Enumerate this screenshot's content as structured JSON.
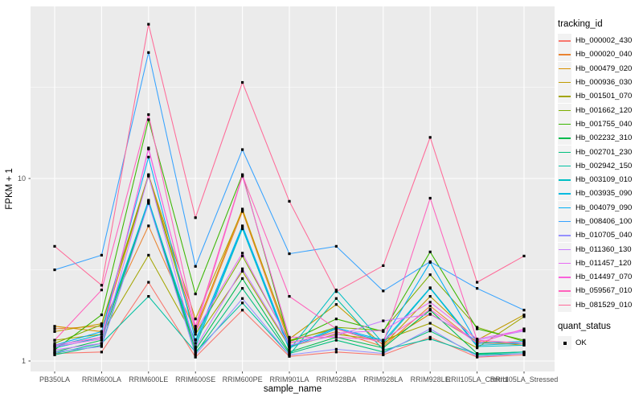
{
  "figure": {
    "xlabel": "sample_name",
    "ylabel": "FPKM + 1",
    "legend_title": "tracking_id",
    "quant_legend_title": "quant_status",
    "quant_legend_label": "OK"
  },
  "chart_data": {
    "type": "line",
    "x_categories": [
      "PB350LA",
      "RRIM600LA",
      "RRIM600LE",
      "RRIM600SE",
      "RRIM600PE",
      "RRIM901LA",
      "RRIM928BA",
      "RRIM928LA",
      "RRIM928LE",
      "RRII105LA_Control",
      "RRII105LA_Stressed"
    ],
    "xlabel": "sample_name",
    "ylabel": "FPKM + 1",
    "yscale": "log10",
    "yticks": [
      1,
      10
    ],
    "ylim": [
      0.88,
      88
    ],
    "grid": true,
    "legend_position": "right",
    "point_marker": "square",
    "point_color": "#000000",
    "panel_bg": "#EBEBEB",
    "grid_color": "#FFFFFF",
    "axis_text_color": "#4d4d4d",
    "legend_key_bg": "#F2F2F2",
    "series": [
      {
        "name": "Hb_000002_430",
        "color": "#F8766D",
        "values": [
          1.1,
          1.12,
          2.7,
          1.05,
          1.9,
          1.06,
          1.12,
          1.08,
          1.35,
          1.05,
          1.08
        ]
      },
      {
        "name": "Hb_000020_040",
        "color": "#EA8331",
        "values": [
          1.5,
          1.55,
          5.5,
          1.45,
          6.6,
          1.25,
          1.45,
          1.2,
          2.0,
          1.25,
          1.25
        ]
      },
      {
        "name": "Hb_000479_020",
        "color": "#D89000",
        "values": [
          1.55,
          1.45,
          10.4,
          1.5,
          6.8,
          1.3,
          1.5,
          1.25,
          1.81,
          1.28,
          1.22
        ]
      },
      {
        "name": "Hb_000936_030",
        "color": "#C09B00",
        "values": [
          1.45,
          1.6,
          10.5,
          1.7,
          6.7,
          1.32,
          2.04,
          1.22,
          2.26,
          1.3,
          1.79
        ]
      },
      {
        "name": "Hb_001501_070",
        "color": "#A3A500",
        "values": [
          1.3,
          1.4,
          3.8,
          1.31,
          3.1,
          1.2,
          1.4,
          1.3,
          1.61,
          1.18,
          1.75
        ]
      },
      {
        "name": "Hb_001662_120",
        "color": "#7CAE00",
        "values": [
          1.25,
          1.58,
          10.3,
          1.4,
          3.76,
          1.28,
          1.53,
          1.47,
          2.97,
          1.53,
          1.28
        ]
      },
      {
        "name": "Hb_001755_040",
        "color": "#39B600",
        "values": [
          1.15,
          1.79,
          21.0,
          2.33,
          10.5,
          1.28,
          1.7,
          1.45,
          3.96,
          1.5,
          1.3
        ]
      },
      {
        "name": "Hb_002232_310",
        "color": "#00BB4E",
        "values": [
          1.12,
          1.3,
          7.5,
          1.15,
          2.83,
          1.12,
          1.35,
          1.18,
          1.9,
          1.1,
          1.12
        ]
      },
      {
        "name": "Hb_002701_230",
        "color": "#00BF7D",
        "values": [
          1.08,
          1.22,
          7.4,
          1.1,
          2.5,
          1.1,
          1.3,
          1.12,
          1.46,
          1.08,
          1.1
        ]
      },
      {
        "name": "Hb_002942_150",
        "color": "#00C1A3",
        "values": [
          1.1,
          1.25,
          2.26,
          1.12,
          2.08,
          1.08,
          2.2,
          1.15,
          1.32,
          1.09,
          1.12
        ]
      },
      {
        "name": "Hb_003109_010",
        "color": "#00BFC4",
        "values": [
          1.18,
          1.35,
          7.6,
          1.2,
          5.3,
          1.15,
          2.45,
          1.25,
          2.5,
          1.2,
          1.22
        ]
      },
      {
        "name": "Hb_003935_090",
        "color": "#00BAE0",
        "values": [
          1.2,
          1.4,
          7.5,
          1.25,
          5.4,
          1.18,
          1.5,
          1.28,
          2.52,
          1.22,
          1.25
        ]
      },
      {
        "name": "Hb_004079_090",
        "color": "#00B0F6",
        "values": [
          1.22,
          1.45,
          13.1,
          1.3,
          5.5,
          1.2,
          1.52,
          1.3,
          3.47,
          1.25,
          1.28
        ]
      },
      {
        "name": "Hb_008406_100",
        "color": "#35A2FF",
        "values": [
          3.16,
          3.8,
          49.0,
          3.3,
          14.4,
          3.87,
          4.25,
          2.42,
          3.5,
          2.5,
          1.9
        ]
      },
      {
        "name": "Hb_010705_040",
        "color": "#9590FF",
        "values": [
          1.12,
          1.2,
          7.3,
          1.08,
          2.2,
          1.08,
          1.16,
          1.1,
          1.5,
          1.06,
          1.1
        ]
      },
      {
        "name": "Hb_011360_130",
        "color": "#C77CFF",
        "values": [
          1.15,
          1.25,
          10.4,
          1.18,
          3.2,
          1.22,
          1.38,
          1.66,
          1.8,
          1.3,
          1.46
        ]
      },
      {
        "name": "Hb_011457_120",
        "color": "#E76BF3",
        "values": [
          1.2,
          1.32,
          14.7,
          1.45,
          3.9,
          1.26,
          1.42,
          1.47,
          2.1,
          1.32,
          1.48
        ]
      },
      {
        "name": "Hb_014497_070",
        "color": "#FA62DB",
        "values": [
          1.22,
          1.35,
          14.5,
          1.48,
          10.3,
          1.35,
          1.35,
          1.3,
          1.92,
          1.25,
          1.5
        ]
      },
      {
        "name": "Hb_059567_010",
        "color": "#FF62BC",
        "values": [
          1.3,
          2.45,
          22.4,
          1.55,
          10.4,
          2.26,
          1.5,
          1.25,
          7.8,
          1.3,
          1.25
        ]
      },
      {
        "name": "Hb_081529_010",
        "color": "#FF6A98",
        "values": [
          4.25,
          2.6,
          70.0,
          6.1,
          33.6,
          7.5,
          2.4,
          3.33,
          16.8,
          2.7,
          3.76
        ]
      }
    ],
    "quant_status": {
      "label": "OK",
      "marker": "square",
      "color": "#000000"
    }
  }
}
